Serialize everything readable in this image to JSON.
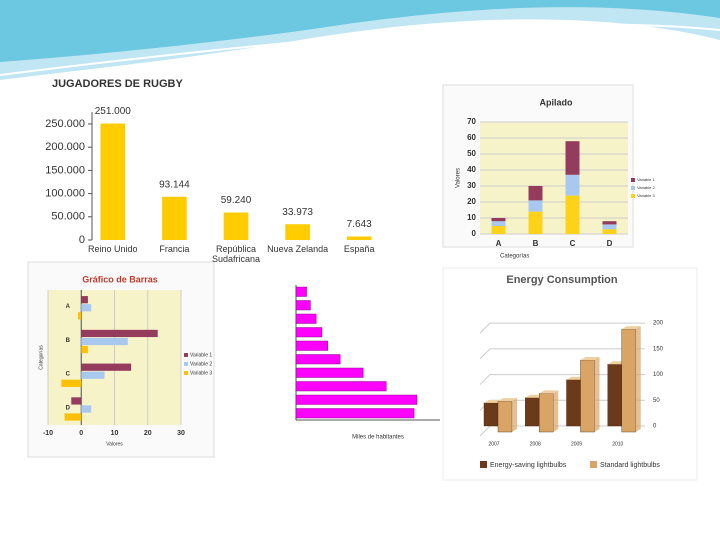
{
  "chart_data": [
    {
      "type": "bar",
      "title": "JUGADORES DE RUGBY",
      "categories": [
        "Reino Unido",
        "Francia",
        "República Sudafricana",
        "Nueva Zelanda",
        "España"
      ],
      "values": [
        251000,
        93144,
        59240,
        33973,
        7643
      ],
      "value_labels": [
        "251.000",
        "93.144",
        "59.240",
        "33.973",
        "7.643"
      ],
      "color": "#ffcc00",
      "ylim": [
        0,
        265000
      ],
      "yticks": [
        0,
        {
          "value": 50000,
          "label": "50.000"
        },
        {
          "value": 100000,
          "label": "100.000"
        },
        {
          "value": 150000,
          "label": "150.000"
        },
        {
          "value": 200000,
          "label": "200.000"
        },
        {
          "value": 250000,
          "label": "250.000"
        }
      ]
    },
    {
      "type": "stacked_bar",
      "title": "Apilado",
      "xlabel": "Categorías",
      "ylabel": "Valores",
      "categories": [
        "A",
        "B",
        "C",
        "D"
      ],
      "series": [
        {
          "name": "Variable 1",
          "color": "#953b5e",
          "values": [
            2,
            9,
            21,
            2
          ]
        },
        {
          "name": "Variable 2",
          "color": "#a9c8f0",
          "values": [
            3,
            7,
            13,
            3
          ]
        },
        {
          "name": "Variable 3",
          "color": "#ffd21a",
          "values": [
            5,
            14,
            24,
            3
          ]
        }
      ],
      "ylim": [
        0,
        70
      ],
      "yticks": [
        0,
        10,
        20,
        30,
        40,
        50,
        60,
        70
      ],
      "grid": true
    },
    {
      "type": "horizontal_bar",
      "title": "Gráfico de Barras",
      "xlabel": "Valores",
      "ylabel": "Categorías",
      "categories": [
        "A",
        "B",
        "C",
        "D"
      ],
      "series": [
        {
          "name": "Variable 1",
          "color": "#953b5e",
          "values": [
            2,
            23,
            15,
            -3
          ]
        },
        {
          "name": "Variable 2",
          "color": "#a9c8f0",
          "values": [
            3,
            14,
            7,
            3
          ]
        },
        {
          "name": "Variable 3",
          "color": "#ffc000",
          "values": [
            -1,
            2,
            -6,
            -5
          ]
        }
      ],
      "xlim": [
        -10,
        30
      ],
      "xticks": [
        -10,
        0,
        10,
        20,
        30
      ],
      "grid": true
    },
    {
      "type": "simple_hbar",
      "xlabel": "Miles de habitantes",
      "categories": [
        null,
        null,
        null,
        null,
        null,
        null,
        null,
        null,
        null,
        null
      ],
      "values": [
        11,
        15,
        21,
        27,
        33,
        46,
        70,
        94,
        126,
        123
      ],
      "color": "#ff00ff",
      "xlim": [
        0,
        150
      ]
    },
    {
      "type": "bar_3d",
      "title": "Energy Consumption",
      "categories": [
        "2007",
        "2008",
        "2009",
        "2010"
      ],
      "series": [
        {
          "name": "Energy-saving lightbulbs",
          "color": "#6b3a1a",
          "values": [
            45,
            55,
            90,
            120
          ]
        },
        {
          "name": "Standard lightbulbs",
          "color": "#d9a567",
          "values": [
            60,
            75,
            140,
            200
          ]
        }
      ],
      "ylim": [
        0,
        210
      ],
      "yticks": [
        0,
        50,
        100,
        150,
        200
      ],
      "grid": true
    }
  ]
}
